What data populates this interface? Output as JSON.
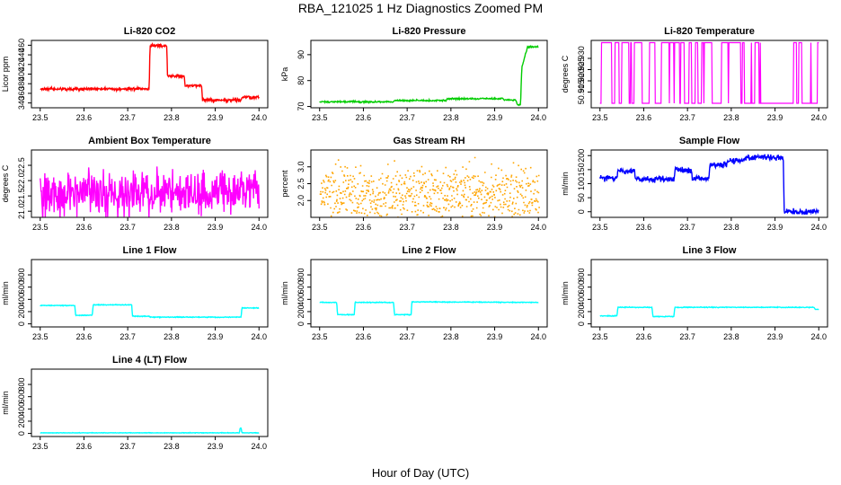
{
  "figure": {
    "title": "RBA_121025  1 Hz Diagnostics Zoomed PM",
    "xlabel": "Hour of Day (UTC)"
  },
  "colors": {
    "red": "#ff0000",
    "green": "#00cc00",
    "magenta": "#ff00ff",
    "orange": "#ffa500",
    "blue": "#0000ff",
    "cyan": "#00ffff"
  },
  "chart_data": [
    {
      "id": "co2",
      "type": "line",
      "title": "Li-820 CO2",
      "ylabel": "Licor ppm",
      "color": "#ff0000",
      "noise": 1.5,
      "xlim": [
        23.48,
        24.02
      ],
      "ylim": [
        330,
        470
      ],
      "x": [
        23.5,
        23.749,
        23.751,
        23.789,
        23.791,
        23.829,
        23.831,
        23.869,
        23.871,
        23.959,
        23.961,
        24.0
      ],
      "values": [
        369,
        369,
        459,
        459,
        396,
        396,
        376,
        376,
        346,
        346,
        352,
        352
      ]
    },
    {
      "id": "pressure",
      "type": "line",
      "title": "Li-820 Pressure",
      "ylabel": "kPa",
      "color": "#00cc00",
      "noise": 0.15,
      "xlim": [
        23.48,
        24.02
      ],
      "ylim": [
        69.5,
        95.5
      ],
      "x": [
        23.5,
        23.669,
        23.671,
        23.789,
        23.791,
        23.919,
        23.921,
        23.949,
        23.951,
        23.959,
        23.962,
        23.975,
        24.0
      ],
      "values": [
        71.8,
        71.8,
        72.3,
        72.3,
        73.0,
        73.0,
        72.5,
        72.5,
        70.7,
        70.7,
        85,
        93,
        93
      ]
    },
    {
      "id": "licor_temp",
      "type": "line",
      "title": "Li-820 Temperature",
      "ylabel": "degrees C",
      "color": "#ff00ff",
      "xlim": [
        23.48,
        24.02
      ],
      "ylim": [
        50.908,
        50.938
      ],
      "levels": [
        50.91,
        50.937
      ],
      "switch_rate": 0.12
    },
    {
      "id": "box_temp",
      "type": "line",
      "title": "Ambient Box Temperature",
      "ylabel": "degrees C",
      "color": "#ff00ff",
      "noise": 0.35,
      "xlim": [
        23.48,
        24.02
      ],
      "ylim": [
        20.8,
        23.0
      ],
      "x": [
        23.5,
        24.0
      ],
      "values": [
        21.6,
        21.6
      ]
    },
    {
      "id": "rh",
      "type": "scatter",
      "title": "Gas Stream RH",
      "ylabel": "percent",
      "color": "#ffa500",
      "noise": 0.4,
      "xlim": [
        23.48,
        24.02
      ],
      "ylim": [
        1.5,
        3.5
      ],
      "x": [
        23.5,
        24.0
      ],
      "values": [
        2.2,
        2.2
      ]
    },
    {
      "id": "sample_flow",
      "type": "line",
      "title": "Sample Flow",
      "ylabel": "ml/min",
      "color": "#0000ff",
      "noise": 5,
      "xlim": [
        23.48,
        24.02
      ],
      "ylim": [
        -20,
        220
      ],
      "x": [
        23.5,
        23.539,
        23.541,
        23.579,
        23.581,
        23.669,
        23.671,
        23.709,
        23.711,
        23.749,
        23.751,
        23.789,
        23.791,
        23.829,
        23.831,
        23.919,
        23.921,
        24.0
      ],
      "values": [
        120,
        120,
        145,
        145,
        115,
        115,
        148,
        148,
        118,
        118,
        168,
        168,
        183,
        183,
        193,
        193,
        0,
        0
      ]
    },
    {
      "id": "line1",
      "type": "line",
      "title": "Line 1 Flow",
      "ylabel": "ml/min",
      "color": "#00ffff",
      "noise": 3,
      "xlim": [
        23.48,
        24.02
      ],
      "ylim": [
        -50,
        1050
      ],
      "x": [
        23.5,
        23.579,
        23.581,
        23.619,
        23.621,
        23.709,
        23.711,
        23.749,
        23.751,
        23.959,
        23.961,
        24.0
      ],
      "values": [
        300,
        300,
        140,
        140,
        310,
        310,
        125,
        125,
        110,
        110,
        260,
        260
      ]
    },
    {
      "id": "line2",
      "type": "line",
      "title": "Line 2 Flow",
      "ylabel": "ml/min",
      "color": "#00ffff",
      "noise": 3,
      "xlim": [
        23.48,
        24.02
      ],
      "ylim": [
        -50,
        1050
      ],
      "x": [
        23.5,
        23.539,
        23.541,
        23.579,
        23.581,
        23.669,
        23.671,
        23.709,
        23.711,
        24.0
      ],
      "values": [
        350,
        350,
        150,
        150,
        350,
        350,
        150,
        150,
        360,
        350
      ]
    },
    {
      "id": "line3",
      "type": "line",
      "title": "Line 3 Flow",
      "ylabel": "ml/min",
      "color": "#00ffff",
      "noise": 3,
      "xlim": [
        23.48,
        24.02
      ],
      "ylim": [
        -50,
        1050
      ],
      "x": [
        23.5,
        23.539,
        23.541,
        23.619,
        23.621,
        23.669,
        23.671,
        23.989,
        23.991,
        24.0
      ],
      "values": [
        130,
        130,
        270,
        270,
        120,
        120,
        270,
        270,
        240,
        240
      ]
    },
    {
      "id": "line4",
      "type": "line",
      "title": "Line 4 (LT) Flow",
      "ylabel": "ml/min",
      "color": "#00ffff",
      "noise": 2,
      "xlim": [
        23.48,
        24.02
      ],
      "ylim": [
        -50,
        1050
      ],
      "x": [
        23.5,
        23.955,
        23.957,
        23.959,
        23.961,
        24.0
      ],
      "values": [
        10,
        10,
        90,
        90,
        10,
        10
      ]
    }
  ],
  "axes": {
    "x_ticks": [
      "23.5",
      "23.6",
      "23.7",
      "23.8",
      "23.9",
      "24.0"
    ],
    "co2_y_ticks": [
      "340",
      "360",
      "380",
      "400",
      "420",
      "440",
      "460"
    ],
    "pressure_y_ticks": [
      "70",
      "80",
      "90"
    ],
    "licor_temp_y_ticks": [
      "50.915",
      "50.920",
      "50.925",
      "50.930"
    ],
    "box_temp_y_ticks": [
      "21.0",
      "21.5",
      "22.0",
      "22.5"
    ],
    "rh_y_ticks": [
      "2.0",
      "2.5",
      "3.0"
    ],
    "sample_flow_y_ticks": [
      "0",
      "50",
      "100",
      "150",
      "200"
    ],
    "flow_y_ticks": [
      "0",
      "200",
      "400",
      "600",
      "800"
    ]
  }
}
